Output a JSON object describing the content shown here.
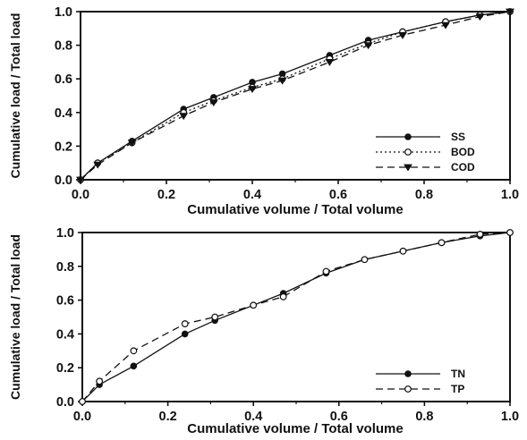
{
  "chart_data": [
    {
      "type": "line",
      "xlabel": "Cumulative volume / Total volume",
      "ylabel": "Cumulative load / Total load",
      "xlim": [
        0,
        1
      ],
      "ylim": [
        0,
        1
      ],
      "xticks": [
        "0.0",
        "0.2",
        "0.4",
        "0.6",
        "0.8",
        "1.0"
      ],
      "yticks": [
        "0.0",
        "0.2",
        "0.4",
        "0.6",
        "0.8",
        "1.0"
      ],
      "legend_position": "bottom-right",
      "series": [
        {
          "name": "SS",
          "marker": "circle-filled",
          "dash": "solid",
          "x": [
            0,
            0.04,
            0.12,
            0.24,
            0.31,
            0.4,
            0.47,
            0.58,
            0.67,
            0.75,
            0.85,
            0.93,
            1.0
          ],
          "y": [
            0,
            0.1,
            0.23,
            0.42,
            0.49,
            0.58,
            0.63,
            0.74,
            0.83,
            0.88,
            0.94,
            0.98,
            1.0
          ]
        },
        {
          "name": "BOD",
          "marker": "circle-open",
          "dash": "dotted",
          "x": [
            0,
            0.04,
            0.12,
            0.24,
            0.31,
            0.4,
            0.47,
            0.58,
            0.67,
            0.75,
            0.85,
            0.93,
            1.0
          ],
          "y": [
            0,
            0.1,
            0.22,
            0.4,
            0.47,
            0.55,
            0.6,
            0.72,
            0.81,
            0.88,
            0.94,
            0.98,
            1.0
          ]
        },
        {
          "name": "COD",
          "marker": "triangle-down",
          "dash": "dashed",
          "x": [
            0,
            0.04,
            0.12,
            0.24,
            0.31,
            0.4,
            0.47,
            0.58,
            0.67,
            0.75,
            0.85,
            0.93,
            1.0
          ],
          "y": [
            0,
            0.09,
            0.22,
            0.38,
            0.46,
            0.54,
            0.59,
            0.7,
            0.8,
            0.86,
            0.92,
            0.97,
            1.0
          ]
        }
      ]
    },
    {
      "type": "line",
      "xlabel": "Cumulative volume / Total volume",
      "ylabel": "Cumulative load / Total load",
      "xlim": [
        0,
        1
      ],
      "ylim": [
        0,
        1
      ],
      "xticks": [
        "0.0",
        "0.2",
        "0.4",
        "0.6",
        "0.8",
        "1.0"
      ],
      "yticks": [
        "0.0",
        "0.2",
        "0.4",
        "0.6",
        "0.8",
        "1.0"
      ],
      "legend_position": "bottom-right",
      "series": [
        {
          "name": "TN",
          "marker": "circle-filled",
          "dash": "solid",
          "x": [
            0,
            0.04,
            0.12,
            0.24,
            0.31,
            0.4,
            0.47,
            0.57,
            0.66,
            0.75,
            0.84,
            0.93,
            1.0
          ],
          "y": [
            0,
            0.1,
            0.21,
            0.4,
            0.48,
            0.57,
            0.64,
            0.76,
            0.84,
            0.89,
            0.94,
            0.98,
            1.0
          ]
        },
        {
          "name": "TP",
          "marker": "circle-open",
          "dash": "dashed",
          "x": [
            0,
            0.04,
            0.12,
            0.24,
            0.31,
            0.4,
            0.47,
            0.57,
            0.66,
            0.75,
            0.84,
            0.93,
            1.0
          ],
          "y": [
            0,
            0.12,
            0.3,
            0.46,
            0.5,
            0.57,
            0.62,
            0.77,
            0.84,
            0.89,
            0.94,
            0.99,
            1.0
          ]
        }
      ]
    }
  ]
}
